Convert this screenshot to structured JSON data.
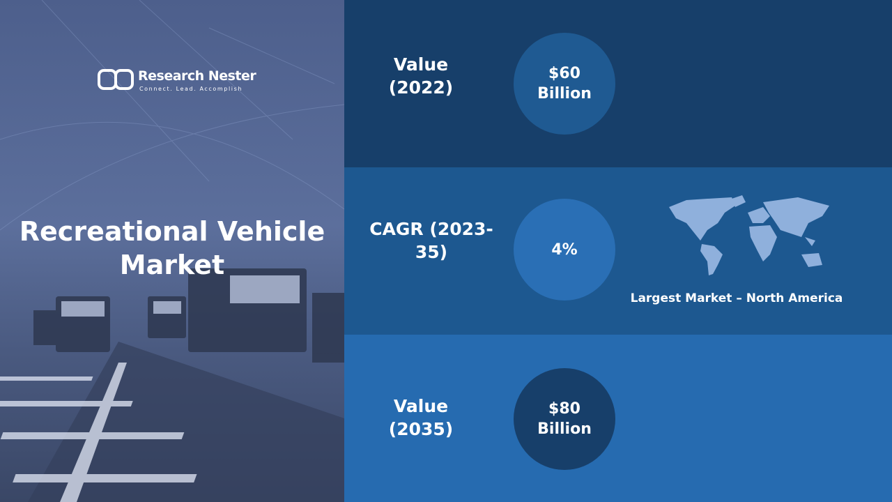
{
  "logo": {
    "name": "Research Nester",
    "tagline": "Connect. Lead. Accomplish"
  },
  "title": "Recreational Vehicle Market",
  "stats": [
    {
      "label": "Value (2022)",
      "value": "$60 Billion"
    },
    {
      "label": "CAGR (2023-35)",
      "value": "4%"
    },
    {
      "label": "Value (2035)",
      "value": "$80 Billion"
    }
  ],
  "map_caption": "Largest Market – North America"
}
